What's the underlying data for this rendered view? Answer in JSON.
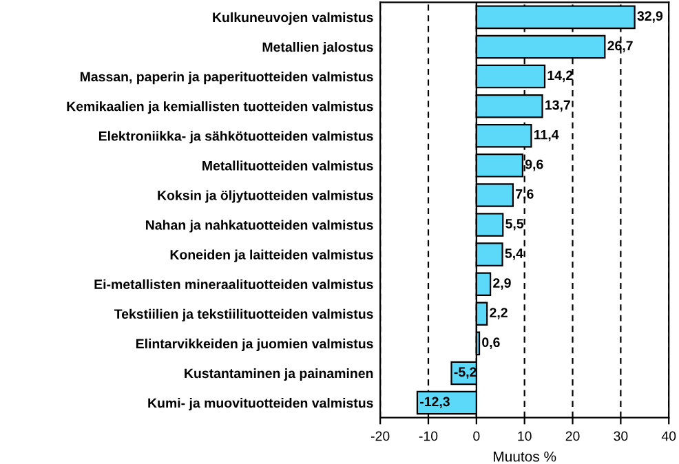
{
  "chart_data": {
    "type": "bar",
    "orientation": "horizontal",
    "xlabel": "Muutos %",
    "categories": [
      "Kulkuneuvojen valmistus",
      "Metallien jalostus",
      "Massan, paperin ja paperituotteiden valmistus",
      "Kemikaalien ja kemiallisten tuotteiden valmistus",
      "Elektroniikka- ja sähkötuotteiden valmistus",
      "Metallituotteiden valmistus",
      "Koksin ja öljytuotteiden valmistus",
      "Nahan ja nahkatuotteiden valmistus",
      "Koneiden ja laitteiden valmistus",
      "Ei-metallisten mineraalituotteiden valmistus",
      "Tekstiilien ja tekstiilituotteiden valmistus",
      "Elintarvikkeiden ja juomien valmistus",
      "Kustantaminen ja painaminen",
      "Kumi- ja muovituotteiden valmistus"
    ],
    "values": [
      32.9,
      26.7,
      14.2,
      13.7,
      11.4,
      9.6,
      7.6,
      5.5,
      5.4,
      2.9,
      2.2,
      0.6,
      -5.2,
      -12.3
    ],
    "value_labels": [
      "32,9",
      "26,7",
      "14,2",
      "13,7",
      "11,4",
      "9,6",
      "7,6",
      "5,5",
      "5,4",
      "2,9",
      "2,2",
      "0,6",
      "-5,2",
      "-12,3"
    ],
    "color": "#5cd8f8",
    "xlim": [
      -20,
      40
    ],
    "xticks": [
      -20,
      -10,
      0,
      10,
      20,
      30,
      40
    ],
    "grid": "x"
  }
}
